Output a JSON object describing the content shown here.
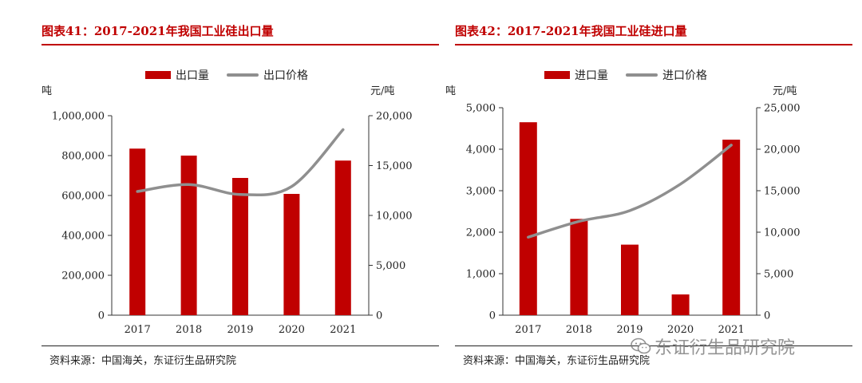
{
  "colors": {
    "bar": "#c00000",
    "line": "#8f8f8f",
    "title": "#c00000"
  },
  "watermark": {
    "text": "东证衍生品研究院",
    "icon": "wechat-icon"
  },
  "charts": [
    {
      "title": "图表41：2017-2021年我国工业硅出口量",
      "legend": {
        "bar": "出口量",
        "line": "出口价格"
      },
      "left_unit": "吨",
      "right_unit": "元/吨",
      "source": "资料来源：中国海关，东证衍生品研究院",
      "left_ticks": [
        "1,000,000",
        "800,000",
        "600,000",
        "400,000",
        "200,000",
        "0"
      ],
      "right_ticks": [
        "20,000",
        "15,000",
        "10,000",
        "5,000",
        "0"
      ]
    },
    {
      "title": "图表42：2017-2021年我国工业硅进口量",
      "legend": {
        "bar": "进口量",
        "line": "进口价格"
      },
      "left_unit": "吨",
      "right_unit": "元/吨",
      "source": "资料来源：中国海关，东证衍生品研究院",
      "left_ticks": [
        "5,000",
        "4,000",
        "3,000",
        "2,000",
        "1,000",
        "0"
      ],
      "right_ticks": [
        "25,000",
        "20,000",
        "15,000",
        "10,000",
        "5,000",
        "0"
      ]
    }
  ],
  "chart_data": [
    {
      "type": "bar",
      "title": "图表41：2017-2021年我国工业硅出口量",
      "categories": [
        "2017",
        "2018",
        "2019",
        "2020",
        "2021"
      ],
      "series": [
        {
          "name": "出口量",
          "type": "bar",
          "axis": "left",
          "values": [
            835000,
            800000,
            688000,
            608000,
            775000
          ]
        },
        {
          "name": "出口价格",
          "type": "line",
          "axis": "right",
          "values": [
            12400,
            13100,
            12100,
            12900,
            18600
          ]
        }
      ],
      "ylabel_left": "吨",
      "ylabel_right": "元/吨",
      "ylim_left": [
        0,
        1000000
      ],
      "ylim_right": [
        0,
        20000
      ],
      "grid": false,
      "legend": "top-center"
    },
    {
      "type": "bar",
      "title": "图表42：2017-2021年我国工业硅进口量",
      "categories": [
        "2017",
        "2018",
        "2019",
        "2020",
        "2021"
      ],
      "series": [
        {
          "name": "进口量",
          "type": "bar",
          "axis": "left",
          "values": [
            4650,
            2320,
            1700,
            500,
            4230
          ]
        },
        {
          "name": "进口价格",
          "type": "line",
          "axis": "right",
          "values": [
            9400,
            11300,
            12600,
            15800,
            20500
          ]
        }
      ],
      "ylabel_left": "吨",
      "ylabel_right": "元/吨",
      "ylim_left": [
        0,
        5000
      ],
      "ylim_right": [
        0,
        25000
      ],
      "grid": false,
      "legend": "top-center"
    }
  ]
}
